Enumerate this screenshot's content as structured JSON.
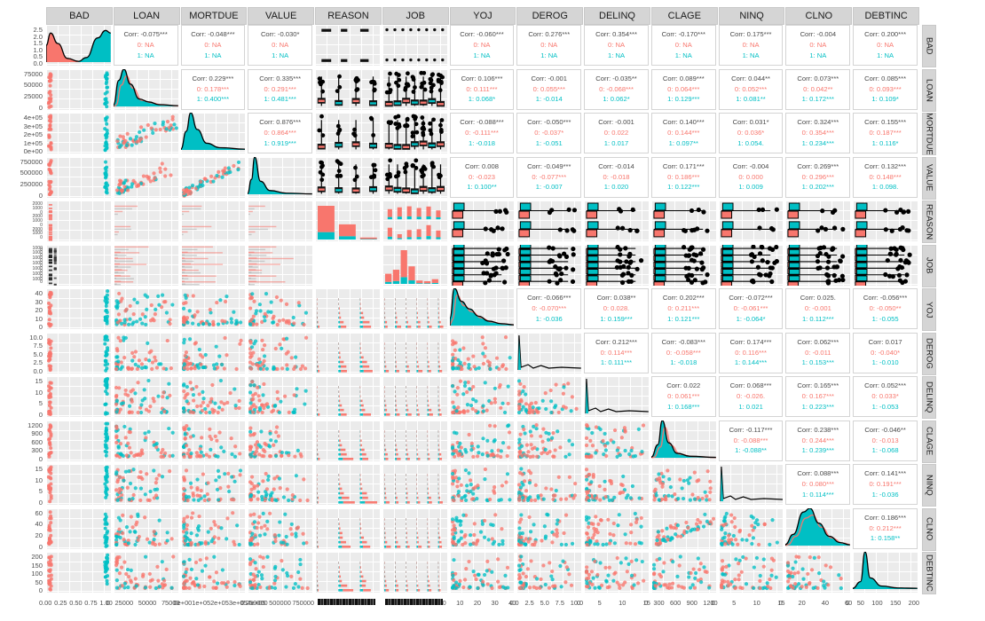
{
  "chart_data": {
    "type": "scatterplot-matrix",
    "style": "R GGally ggpairs pair plot, colored by BAD (0 = red, 1 = teal); density plots on diagonal, scatter/box/histogram panels in lower triangle, correlations in upper triangle",
    "variables": [
      "BAD",
      "LOAN",
      "MORTDUE",
      "VALUE",
      "REASON",
      "JOB",
      "YOJ",
      "DEROG",
      "DELINQ",
      "CLAGE",
      "NINQ",
      "CLNO",
      "DEBTINC"
    ],
    "factor_variables": [
      "REASON",
      "JOB"
    ],
    "groups": [
      {
        "label": "0",
        "color": "#F8766D"
      },
      {
        "label": "1",
        "color": "#00BFC4"
      }
    ],
    "colors": {
      "panel_bg": "#ebebeb",
      "grid": "#ffffff",
      "strip_bg": "#d5d5d5",
      "corr_overall_text": "#4a4a4a",
      "density_fill": "#00BFC4",
      "outline": "#000000"
    },
    "correlations": [
      {
        "row": "BAD",
        "col": "LOAN",
        "overall": "Corr: -0.075***",
        "g0": "0: NA",
        "g1": "1: NA"
      },
      {
        "row": "BAD",
        "col": "MORTDUE",
        "overall": "Corr: -0.048***",
        "g0": "0: NA",
        "g1": "1: NA"
      },
      {
        "row": "BAD",
        "col": "VALUE",
        "overall": "Corr: -0.030*",
        "g0": "0: NA",
        "g1": "1: NA"
      },
      {
        "row": "BAD",
        "col": "YOJ",
        "overall": "Corr: -0.060***",
        "g0": "0: NA",
        "g1": "1: NA"
      },
      {
        "row": "BAD",
        "col": "DEROG",
        "overall": "Corr: 0.276***",
        "g0": "0: NA",
        "g1": "1: NA"
      },
      {
        "row": "BAD",
        "col": "DELINQ",
        "overall": "Corr: 0.354***",
        "g0": "0: NA",
        "g1": "1: NA"
      },
      {
        "row": "BAD",
        "col": "CLAGE",
        "overall": "Corr: -0.170***",
        "g0": "0: NA",
        "g1": "1: NA"
      },
      {
        "row": "BAD",
        "col": "NINQ",
        "overall": "Corr: 0.175***",
        "g0": "0: NA",
        "g1": "1: NA"
      },
      {
        "row": "BAD",
        "col": "CLNO",
        "overall": "Corr: -0.004",
        "g0": "0: NA",
        "g1": "1: NA"
      },
      {
        "row": "BAD",
        "col": "DEBTINC",
        "overall": "Corr: 0.200***",
        "g0": "0: NA",
        "g1": "1: NA"
      },
      {
        "row": "LOAN",
        "col": "MORTDUE",
        "overall": "Corr: 0.229***",
        "g0": "0: 0.178***",
        "g1": "1: 0.400***"
      },
      {
        "row": "LOAN",
        "col": "VALUE",
        "overall": "Corr: 0.335***",
        "g0": "0: 0.291***",
        "g1": "1: 0.481***"
      },
      {
        "row": "LOAN",
        "col": "YOJ",
        "overall": "Corr: 0.106***",
        "g0": "0: 0.111***",
        "g1": "1: 0.068*"
      },
      {
        "row": "LOAN",
        "col": "DEROG",
        "overall": "Corr: -0.001",
        "g0": "0: 0.055***",
        "g1": "1: -0.014"
      },
      {
        "row": "LOAN",
        "col": "DELINQ",
        "overall": "Corr: -0.035**",
        "g0": "0: -0.068***",
        "g1": "1: 0.062*"
      },
      {
        "row": "LOAN",
        "col": "CLAGE",
        "overall": "Corr: 0.089***",
        "g0": "0: 0.064***",
        "g1": "1: 0.129***"
      },
      {
        "row": "LOAN",
        "col": "NINQ",
        "overall": "Corr: 0.044**",
        "g0": "0: 0.052***",
        "g1": "1: 0.081**"
      },
      {
        "row": "LOAN",
        "col": "CLNO",
        "overall": "Corr: 0.073***",
        "g0": "0: 0.042**",
        "g1": "1: 0.172***"
      },
      {
        "row": "LOAN",
        "col": "DEBTINC",
        "overall": "Corr: 0.085***",
        "g0": "0: 0.093***",
        "g1": "1: 0.109*"
      },
      {
        "row": "MORTDUE",
        "col": "VALUE",
        "overall": "Corr: 0.876***",
        "g0": "0: 0.864***",
        "g1": "1: 0.919***"
      },
      {
        "row": "MORTDUE",
        "col": "YOJ",
        "overall": "Corr: -0.088***",
        "g0": "0: -0.111***",
        "g1": "1: -0.018"
      },
      {
        "row": "MORTDUE",
        "col": "DEROG",
        "overall": "Corr: -0.050***",
        "g0": "0: -0.037*",
        "g1": "1: -0.051"
      },
      {
        "row": "MORTDUE",
        "col": "DELINQ",
        "overall": "Corr: -0.001",
        "g0": "0: 0.022",
        "g1": "1: 0.017"
      },
      {
        "row": "MORTDUE",
        "col": "CLAGE",
        "overall": "Corr: 0.140***",
        "g0": "0: 0.144***",
        "g1": "1: 0.097**"
      },
      {
        "row": "MORTDUE",
        "col": "NINQ",
        "overall": "Corr: 0.031*",
        "g0": "0: 0.036*",
        "g1": "1: 0.054."
      },
      {
        "row": "MORTDUE",
        "col": "CLNO",
        "overall": "Corr: 0.324***",
        "g0": "0: 0.354***",
        "g1": "1: 0.234***"
      },
      {
        "row": "MORTDUE",
        "col": "DEBTINC",
        "overall": "Corr: 0.155***",
        "g0": "0: 0.187***",
        "g1": "1: 0.116*"
      },
      {
        "row": "VALUE",
        "col": "YOJ",
        "overall": "Corr: 0.008",
        "g0": "0: -0.023",
        "g1": "1: 0.100**"
      },
      {
        "row": "VALUE",
        "col": "DEROG",
        "overall": "Corr: -0.049***",
        "g0": "0: -0.077***",
        "g1": "1: -0.007"
      },
      {
        "row": "VALUE",
        "col": "DELINQ",
        "overall": "Corr: -0.014",
        "g0": "0: -0.018",
        "g1": "1: 0.020"
      },
      {
        "row": "VALUE",
        "col": "CLAGE",
        "overall": "Corr: 0.171***",
        "g0": "0: 0.186***",
        "g1": "1: 0.122***"
      },
      {
        "row": "VALUE",
        "col": "NINQ",
        "overall": "Corr: -0.004",
        "g0": "0: 0.000",
        "g1": "1: 0.009"
      },
      {
        "row": "VALUE",
        "col": "CLNO",
        "overall": "Corr: 0.269***",
        "g0": "0: 0.296***",
        "g1": "1: 0.202***"
      },
      {
        "row": "VALUE",
        "col": "DEBTINC",
        "overall": "Corr: 0.132***",
        "g0": "0: 0.148***",
        "g1": "1: 0.098."
      },
      {
        "row": "YOJ",
        "col": "DEROG",
        "overall": "Corr: -0.066***",
        "g0": "0: -0.070***",
        "g1": "1: -0.036"
      },
      {
        "row": "YOJ",
        "col": "DELINQ",
        "overall": "Corr: 0.038**",
        "g0": "0: 0.028.",
        "g1": "1: 0.159***"
      },
      {
        "row": "YOJ",
        "col": "CLAGE",
        "overall": "Corr: 0.202***",
        "g0": "0: 0.211***",
        "g1": "1: 0.121***"
      },
      {
        "row": "YOJ",
        "col": "NINQ",
        "overall": "Corr: -0.072***",
        "g0": "0: -0.061***",
        "g1": "1: -0.064*"
      },
      {
        "row": "YOJ",
        "col": "CLNO",
        "overall": "Corr: 0.025.",
        "g0": "0: -0.001",
        "g1": "1: 0.112***"
      },
      {
        "row": "YOJ",
        "col": "DEBTINC",
        "overall": "Corr: -0.056***",
        "g0": "0: -0.050**",
        "g1": "1: -0.055"
      },
      {
        "row": "DEROG",
        "col": "DELINQ",
        "overall": "Corr: 0.212***",
        "g0": "0: 0.114***",
        "g1": "1: 0.111***"
      },
      {
        "row": "DEROG",
        "col": "CLAGE",
        "overall": "Corr: -0.083***",
        "g0": "0: -0.058***",
        "g1": "1: -0.018"
      },
      {
        "row": "DEROG",
        "col": "NINQ",
        "overall": "Corr: 0.174***",
        "g0": "0: 0.116***",
        "g1": "1: 0.144***"
      },
      {
        "row": "DEROG",
        "col": "CLNO",
        "overall": "Corr: 0.062***",
        "g0": "0: -0.011",
        "g1": "1: 0.153***"
      },
      {
        "row": "DEROG",
        "col": "DEBTINC",
        "overall": "Corr: 0.017",
        "g0": "0: -0.040*",
        "g1": "1: -0.010"
      },
      {
        "row": "DELINQ",
        "col": "CLAGE",
        "overall": "Corr: 0.022",
        "g0": "0: 0.061***",
        "g1": "1: 0.168***"
      },
      {
        "row": "DELINQ",
        "col": "NINQ",
        "overall": "Corr: 0.068***",
        "g0": "0: -0.026.",
        "g1": "1: 0.021"
      },
      {
        "row": "DELINQ",
        "col": "CLNO",
        "overall": "Corr: 0.165***",
        "g0": "0: 0.167***",
        "g1": "1: 0.223***"
      },
      {
        "row": "DELINQ",
        "col": "DEBTINC",
        "overall": "Corr: 0.052***",
        "g0": "0: 0.033*",
        "g1": "1: -0.053"
      },
      {
        "row": "CLAGE",
        "col": "NINQ",
        "overall": "Corr: -0.117***",
        "g0": "0: -0.088***",
        "g1": "1: -0.088**"
      },
      {
        "row": "CLAGE",
        "col": "CLNO",
        "overall": "Corr: 0.238***",
        "g0": "0: 0.244***",
        "g1": "1: 0.239***"
      },
      {
        "row": "CLAGE",
        "col": "DEBTINC",
        "overall": "Corr: -0.046**",
        "g0": "0: -0.013",
        "g1": "1: -0.068"
      },
      {
        "row": "NINQ",
        "col": "CLNO",
        "overall": "Corr: 0.088***",
        "g0": "0: 0.080***",
        "g1": "1: 0.114***"
      },
      {
        "row": "NINQ",
        "col": "DEBTINC",
        "overall": "Corr: 0.141***",
        "g0": "0: 0.191***",
        "g1": "1: -0.036"
      },
      {
        "row": "CLNO",
        "col": "DEBTINC",
        "overall": "Corr: 0.186***",
        "g0": "0: 0.212***",
        "g1": "1: 0.158**"
      }
    ],
    "y_axis_ticks": {
      "BAD": [
        "2.5",
        "2.0",
        "1.5",
        "1.0",
        "0.5",
        "0.0"
      ],
      "LOAN": [
        "75000",
        "50000",
        "25000",
        "0"
      ],
      "MORTDUE": [
        "4e+05",
        "3e+05",
        "2e+05",
        "1e+05",
        "0e+00"
      ],
      "VALUE": [
        "750000",
        "500000",
        "250000",
        "0"
      ],
      "REASON": [
        "2000",
        "1000",
        "0",
        "2000",
        "1000",
        "0",
        "2000",
        "1000",
        "0"
      ],
      "JOB": [
        "1000",
        "0",
        "1000",
        "0",
        "1000",
        "0",
        "1000",
        "0",
        "1000",
        "0",
        "1000",
        "0",
        "1000",
        "0"
      ],
      "YOJ": [
        "40",
        "30",
        "20",
        "10",
        "0"
      ],
      "DEROG": [
        "10.0",
        "7.5",
        "5.0",
        "2.5",
        "0.0"
      ],
      "DELINQ": [
        "15",
        "10",
        "5",
        "0"
      ],
      "CLAGE": [
        "1200",
        "900",
        "600",
        "300",
        "0"
      ],
      "NINQ": [
        "15",
        "10",
        "5",
        "0"
      ],
      "CLNO": [
        "60",
        "40",
        "20",
        "0"
      ],
      "DEBTINC": [
        "200",
        "150",
        "100",
        "50",
        "0"
      ]
    },
    "x_axis_ticks": {
      "BAD": [
        "0.00",
        "0.25",
        "0.50",
        "0.75",
        "1.00"
      ],
      "LOAN": [
        "0",
        "25000",
        "50000",
        "75000"
      ],
      "MORTDUE": [
        "0e+00",
        "1e+05",
        "2e+05",
        "3e+05",
        "4e+05"
      ],
      "VALUE": [
        "0",
        "250000",
        "500000",
        "750000"
      ],
      "REASON": [],
      "JOB": [],
      "YOJ": [
        "0",
        "10",
        "20",
        "30",
        "40"
      ],
      "DEROG": [
        "0.0",
        "2.5",
        "5.0",
        "7.5",
        "10.0"
      ],
      "DELINQ": [
        "0",
        "5",
        "10",
        "15"
      ],
      "CLAGE": [
        "0",
        "300",
        "600",
        "900",
        "1200"
      ],
      "NINQ": [
        "0",
        "5",
        "10",
        "15"
      ],
      "CLNO": [
        "0",
        "20",
        "40",
        "60"
      ],
      "DEBTINC": [
        "0",
        "50",
        "100",
        "150",
        "200"
      ]
    },
    "x_axis_overlap_smear": [
      "REASON",
      "JOB"
    ]
  }
}
